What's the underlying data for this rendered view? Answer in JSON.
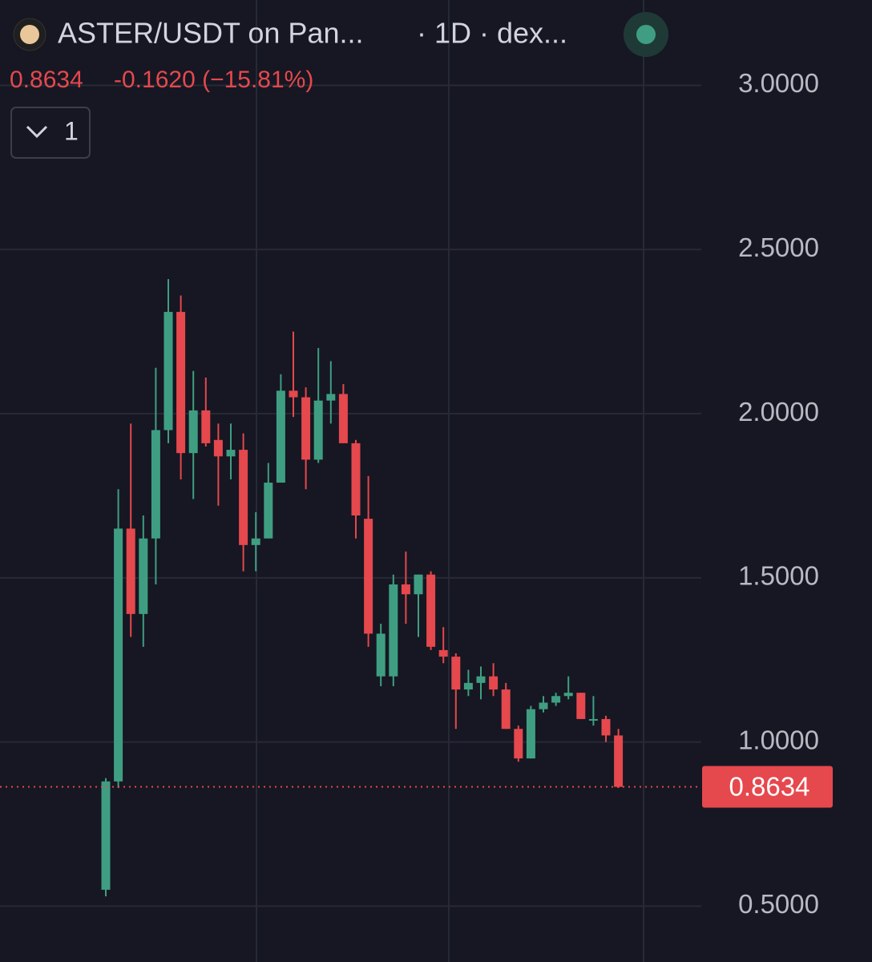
{
  "header": {
    "title": "ASTER/USDT on Pan...",
    "interval": "· 1D · dex...",
    "change": "-0.1620 (−15.81%)",
    "indicator_count": "1"
  },
  "chart_data": {
    "type": "candlestick",
    "open": [
      0.55,
      0.88,
      1.65,
      1.39,
      1.62,
      1.95,
      2.31,
      1.88,
      2.01,
      1.92,
      1.87,
      1.89,
      1.6,
      1.62,
      1.79,
      2.07,
      2.05,
      1.86,
      2.04,
      2.06,
      1.91,
      1.68,
      1.2,
      1.2,
      1.48,
      1.45,
      1.51,
      1.28,
      1.26,
      1.16,
      1.18,
      1.2,
      1.16,
      1.04,
      0.95,
      1.1,
      1.12,
      1.14,
      1.15,
      1.07,
      1.07,
      1.02
    ],
    "high": [
      0.89,
      1.77,
      1.97,
      1.69,
      2.14,
      2.41,
      2.36,
      2.13,
      2.11,
      1.97,
      1.97,
      1.94,
      1.7,
      1.85,
      2.12,
      2.25,
      2.08,
      2.2,
      2.16,
      2.09,
      1.92,
      1.81,
      1.36,
      1.51,
      1.58,
      1.51,
      1.52,
      1.35,
      1.27,
      1.22,
      1.23,
      1.24,
      1.18,
      1.05,
      1.11,
      1.14,
      1.15,
      1.2,
      1.15,
      1.14,
      1.08,
      1.04
    ],
    "low": [
      0.53,
      0.86,
      1.32,
      1.29,
      1.48,
      1.91,
      1.8,
      1.74,
      1.9,
      1.72,
      1.8,
      1.52,
      1.52,
      1.62,
      1.79,
      1.99,
      1.77,
      1.85,
      1.97,
      1.91,
      1.62,
      1.29,
      1.17,
      1.17,
      1.36,
      1.32,
      1.28,
      1.24,
      1.04,
      1.14,
      1.13,
      1.14,
      1.04,
      0.94,
      0.95,
      1.09,
      1.11,
      1.13,
      1.07,
      1.05,
      1.0,
      0.86
    ],
    "close": [
      0.88,
      1.65,
      1.39,
      1.62,
      1.95,
      2.31,
      1.88,
      2.01,
      1.91,
      1.87,
      1.89,
      1.6,
      1.62,
      1.79,
      2.07,
      2.05,
      1.86,
      2.04,
      2.06,
      1.91,
      1.69,
      1.33,
      1.33,
      1.48,
      1.45,
      1.51,
      1.29,
      1.26,
      1.16,
      1.18,
      1.2,
      1.16,
      1.04,
      0.95,
      1.1,
      1.12,
      1.14,
      1.15,
      1.07,
      1.07,
      1.02,
      0.8634
    ],
    "up_color": "#3f9e82",
    "down_color": "#e5484d",
    "ylim": [
      0.33,
      3.26
    ],
    "yticks": [
      {
        "value": 3,
        "label": "3.0000"
      },
      {
        "value": 2.5,
        "label": "2.5000"
      },
      {
        "value": 2,
        "label": "2.0000"
      },
      {
        "value": 1.5,
        "label": "1.5000"
      },
      {
        "value": 1,
        "label": "1.0000"
      },
      {
        "value": 0.5,
        "label": "0.5000"
      }
    ],
    "grid": true
  }
}
